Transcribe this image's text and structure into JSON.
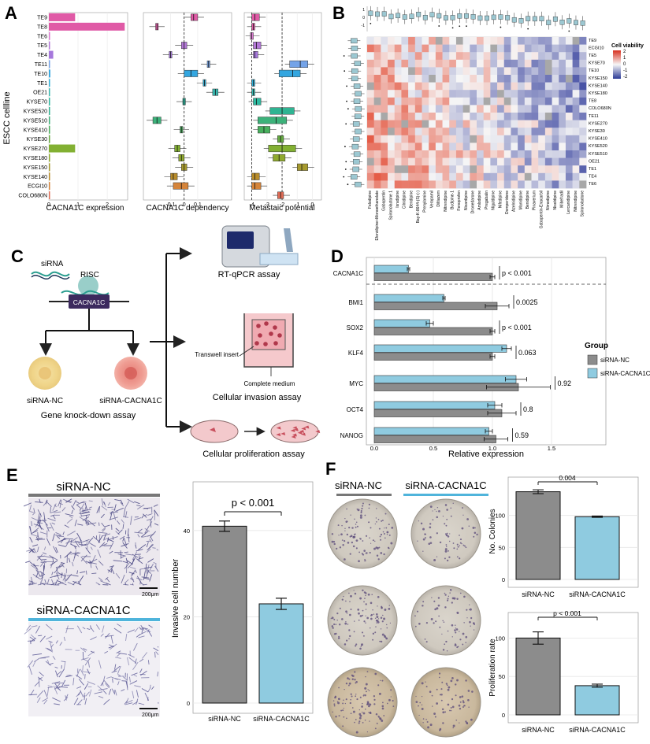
{
  "panels": [
    "A",
    "B",
    "C",
    "D",
    "E",
    "F"
  ],
  "panelA": {
    "ylabel": "ESCC cellline",
    "celllines": [
      "TE9",
      "TE8",
      "TE6",
      "TE5",
      "TE4",
      "TE11",
      "TE10",
      "TE1",
      "OE21",
      "KYSE70",
      "KYSE520",
      "KYSE510",
      "KYSE410",
      "KYSE30",
      "KYSE270",
      "KYSE180",
      "KYSE150",
      "KYSE140",
      "ECGI10",
      "COLO680N"
    ],
    "expression_colors": [
      "#e05aa6",
      "#e05aa6",
      "#d97ad0",
      "#b478d8",
      "#a678dc",
      "#74a3e8",
      "#33a6e0",
      "#2fb0d8",
      "#38b8b0",
      "#2ebaa0",
      "#2fb492",
      "#3cb27a",
      "#48b05e",
      "#66ab43",
      "#82b032",
      "#8fa92e",
      "#a69a2e",
      "#b88c2a",
      "#d5843a",
      "#e06d57"
    ],
    "expression": {
      "xlabel": "CACNA1C expression",
      "ticks": [
        "0",
        "1",
        "2"
      ],
      "values": [
        0.9,
        2.6,
        0.02,
        0.0,
        0.15,
        0.0,
        0.05,
        0.03,
        0.0,
        0.03,
        0.0,
        0.0,
        0.0,
        0.0,
        0.9,
        0.0,
        0.0,
        0.0,
        0.03,
        0.02
      ]
    },
    "dependency": {
      "xlabel": "CACNA1C dependency",
      "ticks": [
        "-0.1",
        "0",
        "0.1"
      ],
      "median": [
        0.07,
        -0.2,
        null,
        0.0,
        -0.1,
        0.18,
        0.05,
        0.15,
        0.23,
        0.0,
        null,
        -0.2,
        -0.02,
        null,
        -0.05,
        -0.02,
        0.0,
        -0.08,
        -0.02,
        null
      ],
      "q1": [
        0.05,
        -0.21,
        null,
        -0.02,
        -0.11,
        0.17,
        0.0,
        0.14,
        0.21,
        -0.01,
        null,
        -0.23,
        -0.03,
        null,
        -0.07,
        -0.04,
        -0.02,
        -0.1,
        -0.08,
        null
      ],
      "q3": [
        0.1,
        -0.19,
        null,
        0.02,
        -0.09,
        0.19,
        0.1,
        0.16,
        0.25,
        0.01,
        null,
        -0.17,
        -0.01,
        null,
        -0.03,
        0.0,
        0.02,
        -0.05,
        0.03,
        null
      ]
    },
    "metastatic": {
      "xlabel": "Metastaic potential",
      "ticks": [
        "-4",
        "-3",
        "-2",
        "-1",
        "0"
      ],
      "median": [
        -3.8,
        -3.9,
        -4.0,
        -3.7,
        -3.8,
        -0.8,
        -1.3,
        -3.9,
        -3.9,
        -3.7,
        -2.0,
        -2.4,
        -3.2,
        -2.1,
        -2.0,
        -2.2,
        -0.7,
        -3.8,
        -3.8,
        -2.1
      ],
      "q1": [
        -4.0,
        -4.0,
        -4.1,
        -3.9,
        -3.9,
        -1.5,
        -2.2,
        -4.0,
        -4.0,
        -3.9,
        -2.8,
        -3.6,
        -3.6,
        -2.3,
        -2.9,
        -2.6,
        -1.0,
        -4.0,
        -4.0,
        -2.3
      ],
      "q3": [
        -3.5,
        -3.8,
        -3.9,
        -3.4,
        -3.6,
        -0.3,
        -0.8,
        -3.8,
        -3.8,
        -3.4,
        -1.2,
        -1.7,
        -2.8,
        -1.9,
        -1.1,
        -1.8,
        -0.3,
        -3.5,
        -3.4,
        -1.9
      ]
    }
  },
  "panelB": {
    "legend_title": "Cell viability",
    "legend_ticks": [
      "2",
      "1",
      "0",
      "-1",
      "-2"
    ],
    "top_axis_ticks": [
      "1",
      "0",
      "-1"
    ],
    "rows": [
      "TE9",
      "ECGI10",
      "TE5",
      "KYSE70",
      "TE10",
      "KYSE150",
      "KYSE140",
      "KYSE180",
      "TE8",
      "COLO680N",
      "TE11",
      "KYSE270",
      "KYSE30",
      "KYSE410",
      "KYSE520",
      "KYSE510",
      "OE21",
      "TE1",
      "TE4",
      "TE6"
    ],
    "columns": [
      "Felodipine",
      "Efonidipine+Monoethanolate",
      "Gabapentin",
      "Spironolactone 1",
      "Isradipine",
      "Cilnidipine",
      "Bendipine",
      "Bay-K-8644-(S)-(-)",
      "Prenylamine",
      "Verapamil",
      "Diltiazem",
      "Nitrendipine",
      "Budipine-1",
      "Fenoprofen",
      "Nicardipine",
      "Dronedarone",
      "Amlodipine",
      "Pregabalin",
      "Niguldipine",
      "Nifedipine",
      "Domperidone",
      "Azelnidipine",
      "Manidipine",
      "Benidipine",
      "Pinaverium",
      "Gabapentin-Enacarbil",
      "Nimodipine",
      "Nisoldipine",
      "Mibefradil",
      "Lercanidipine",
      "Nitrendipine",
      "Spironolactone"
    ]
  },
  "panelC": {
    "sirna_label": "siRNA",
    "risc_label": "RISC",
    "gene_label": "CACNA1C",
    "nc_label": "siRNA-NC",
    "kd_label": "siRNA-CACNA1C",
    "knockdown_caption": "Gene knock-down assay",
    "rtqpcr_caption": "RT-qPCR assay",
    "transwell_label": "Transwell insert",
    "medium_label": "Complete medium",
    "invasion_caption": "Cellular invasion assay",
    "proliferation_caption": "Cellular proliferation assay"
  },
  "panelD": {
    "chart_data": {
      "type": "bar",
      "orientation": "horizontal",
      "categories": [
        "CACNA1C",
        "BMI1",
        "SOX2",
        "KLF4",
        "MYC",
        "OCT4",
        "NANOG"
      ],
      "series": [
        {
          "name": "siRNA-CACNA1C",
          "color": "#8fcbe0",
          "values": [
            0.29,
            0.59,
            0.47,
            1.12,
            1.2,
            1.02,
            0.97
          ],
          "errors": [
            0.01,
            0.01,
            0.03,
            0.04,
            0.09,
            0.06,
            0.03
          ]
        },
        {
          "name": "siRNA-NC",
          "color": "#8c8c8c",
          "values": [
            1.0,
            1.04,
            1.0,
            1.0,
            1.22,
            1.08,
            1.03
          ],
          "errors": [
            0.02,
            0.1,
            0.02,
            0.02,
            0.27,
            0.12,
            0.1
          ]
        }
      ],
      "pvalues": [
        "p < 0.001",
        "0.0025",
        "p < 0.001",
        "0.063",
        "0.92",
        "0.8",
        "0.59"
      ],
      "xlabel": "Relative expression",
      "xticks": [
        "0.0",
        "0.5",
        "1.0",
        "1.5"
      ],
      "xlim": [
        0,
        1.6
      ],
      "legend_title": "Group",
      "legend_items": [
        "siRNA-NC",
        "siRNA-CACNA1C"
      ]
    }
  },
  "panelE": {
    "nc_title": "siRNA-NC",
    "kd_title": "siRNA-CACNA1C",
    "scalebar": "200μm",
    "chart_data": {
      "type": "bar",
      "categories": [
        "siRNA-NC",
        "siRNA-CACNA1C"
      ],
      "values": [
        41,
        23
      ],
      "errors": [
        1.2,
        1.3
      ],
      "colors": [
        "#8c8c8c",
        "#8fcbe0"
      ],
      "ylabel": "Invasive cell number",
      "yticks": [
        "0",
        "20",
        "40"
      ],
      "ylim": [
        0,
        48
      ],
      "pvalue": "p < 0.001"
    }
  },
  "panelF": {
    "nc_title": "siRNA-NC",
    "kd_title": "siRNA-CACNA1C",
    "chart_data": [
      {
        "type": "bar",
        "categories": [
          "siRNA-NC",
          "siRNA-CACNA1C"
        ],
        "values": [
          137,
          98
        ],
        "errors": [
          3,
          1
        ],
        "colors": [
          "#8c8c8c",
          "#8fcbe0"
        ],
        "ylabel": "No. Colonies",
        "yticks": [
          "0",
          "50",
          "100"
        ],
        "ylim": [
          0,
          150
        ],
        "pvalue": "0.004"
      },
      {
        "type": "bar",
        "categories": [
          "siRNA-NC",
          "siRNA-CACNA1C"
        ],
        "values": [
          100,
          38
        ],
        "errors": [
          8,
          2
        ],
        "colors": [
          "#8c8c8c",
          "#8fcbe0"
        ],
        "ylabel": "Proliferation rate",
        "yticks": [
          "0",
          "50",
          "100"
        ],
        "ylim": [
          0,
          125
        ],
        "pvalue": "p < 0.001"
      }
    ]
  }
}
